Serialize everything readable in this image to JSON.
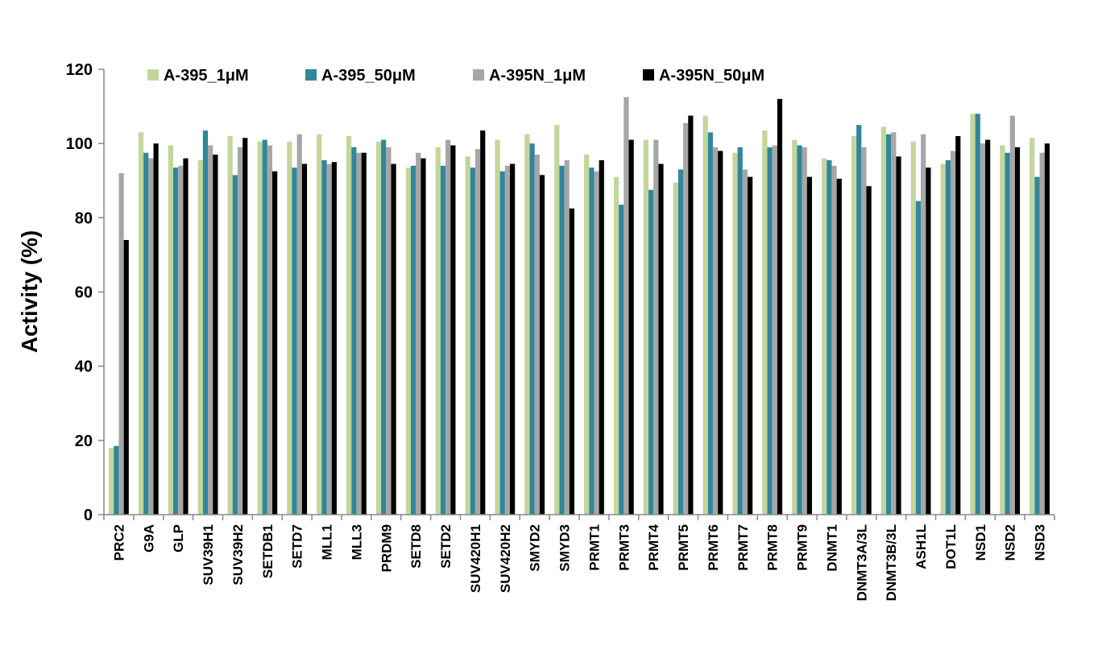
{
  "chart_data": {
    "type": "bar",
    "title": "",
    "xlabel": "",
    "ylabel": "Activity (%)",
    "ylim": [
      0,
      120
    ],
    "yticks": [
      0,
      20,
      40,
      60,
      80,
      100,
      120
    ],
    "grid": false,
    "legend_position": "top",
    "categories": [
      "PRC2",
      "G9A",
      "GLP",
      "SUV39H1",
      "SUV39H2",
      "SETDB1",
      "SETD7",
      "MLL1",
      "MLL3",
      "PRDM9",
      "SETD8",
      "SETD2",
      "SUV420H1",
      "SUV420H2",
      "SMYD2",
      "SMYD3",
      "PRMT1",
      "PRMT3",
      "PRMT4",
      "PRMT5",
      "PRMT6",
      "PRMT7",
      "PRMT8",
      "PRMT9",
      "DNMT1",
      "DNMT3A/3L",
      "DNMT3B/3L",
      "ASH1L",
      "DOT1L",
      "NSD1",
      "NSD2",
      "NSD3"
    ],
    "series": [
      {
        "name": "A-395_1μM",
        "color": "#c3d69b",
        "values": [
          18,
          103,
          99.5,
          95.5,
          102,
          100.5,
          100.5,
          102.5,
          102,
          100.5,
          93.5,
          99,
          96.5,
          101,
          102.5,
          105,
          97,
          91,
          101,
          89.5,
          107.5,
          97.5,
          103.5,
          101,
          96,
          102,
          104.5,
          100.5,
          94.5,
          108,
          99.5,
          101.5
        ]
      },
      {
        "name": "A-395_50μM",
        "color": "#31859c",
        "values": [
          18.5,
          97.5,
          93.5,
          103.5,
          91.5,
          101,
          93.5,
          95.5,
          99,
          101,
          94,
          94,
          93.5,
          92.5,
          100,
          94,
          93.5,
          83.5,
          87.5,
          93,
          103,
          99,
          99,
          99.5,
          95.5,
          105,
          102.5,
          84.5,
          95.5,
          108,
          97.5,
          91
        ]
      },
      {
        "name": "A-395N_1μM",
        "color": "#a6a6a6",
        "values": [
          92,
          96,
          94,
          99.5,
          99,
          99.5,
          102.5,
          94.5,
          97.5,
          99,
          97.5,
          101,
          98.5,
          94,
          97,
          95.5,
          92.5,
          112.5,
          101,
          105.5,
          99,
          93,
          99.5,
          99,
          94,
          99,
          103,
          102.5,
          98,
          100,
          107.5,
          97.5
        ]
      },
      {
        "name": "A-395N_50μM",
        "color": "#000000",
        "values": [
          74,
          100,
          96,
          97,
          101.5,
          92.5,
          94.5,
          95,
          97.5,
          94.5,
          96,
          99.5,
          103.5,
          94.5,
          91.5,
          82.5,
          95.5,
          101,
          94.5,
          107.5,
          98,
          91,
          112,
          91,
          90.5,
          88.5,
          96.5,
          93.5,
          102,
          101,
          99,
          100
        ]
      }
    ]
  }
}
